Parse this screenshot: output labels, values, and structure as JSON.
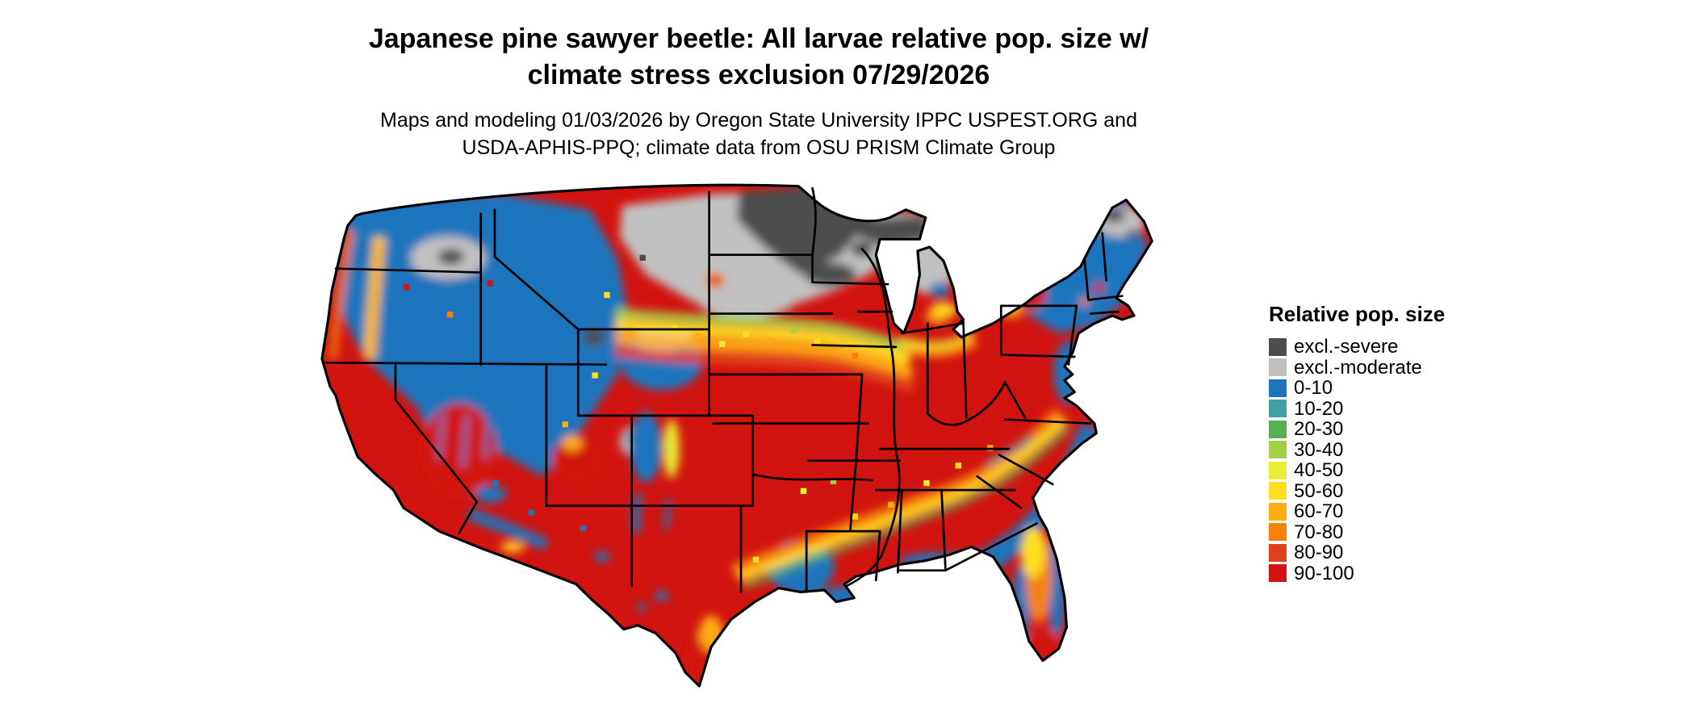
{
  "title": {
    "line1": "Japanese pine sawyer beetle: All larvae relative pop. size w/",
    "line2": "climate stress exclusion 07/29/2026"
  },
  "subtitle": {
    "line1": "Maps and modeling 01/03/2026 by Oregon State University IPPC USPEST.ORG and",
    "line2": "USDA-APHIS-PPQ; climate data from OSU PRISM Climate Group"
  },
  "legend": {
    "title": "Relative pop. size",
    "items": [
      {
        "key": "sev",
        "label": "excl.-severe",
        "color": "#4d4d4d"
      },
      {
        "key": "mod",
        "label": "excl.-moderate",
        "color": "#c0c0c0"
      },
      {
        "key": "p0",
        "label": "0-10",
        "color": "#1b75bc"
      },
      {
        "key": "p10",
        "label": "10-20",
        "color": "#41a0a4"
      },
      {
        "key": "p20",
        "label": "20-30",
        "color": "#55b054"
      },
      {
        "key": "p30",
        "label": "30-40",
        "color": "#a3d048"
      },
      {
        "key": "p40",
        "label": "40-50",
        "color": "#e8ee33"
      },
      {
        "key": "p50",
        "label": "50-60",
        "color": "#ffdf20"
      },
      {
        "key": "p60",
        "label": "60-70",
        "color": "#ffac12"
      },
      {
        "key": "p70",
        "label": "70-80",
        "color": "#f5820d"
      },
      {
        "key": "p80",
        "label": "80-90",
        "color": "#e2401c"
      },
      {
        "key": "p90",
        "label": "90-100",
        "color": "#d21410"
      }
    ]
  },
  "map": {
    "description": "Continental United States raster map of modeled relative population size for Japanese pine sawyer beetle larvae with climate stress exclusion; state boundaries drawn in black, water shown white.",
    "border_color": "#000000",
    "water_color": "#ffffff",
    "regions": [
      {
        "area": "Northern Plains and Upper Midwest (E MT, ND, MN, N WI, MI Upper Peninsula)",
        "dominant_class": "excl.-moderate / excl.-severe"
      },
      {
        "area": "Pacific Northwest and Northern Rockies (WA, OR, ID, W MT, W WY)",
        "dominant_class": "0-10 with scattered red/yellow valley patches"
      },
      {
        "area": "California, Nevada, Desert Southwest",
        "dominant_class": "90-100 with 0-10 montane streaks"
      },
      {
        "area": "Central and Southern Plains, Midwest, Mid-South, interior East",
        "dominant_class": "90-100"
      },
      {
        "area": "Plains transition band (SD, NE, IA edge)",
        "dominant_class": "30-80 gradient between excluded north and red core"
      },
      {
        "area": "Gulf and South Atlantic coastal plain (E TX, LA, MS, AL, GA, Carolinas coast)",
        "dominant_class": "0-10 with orange/yellow inland fringe"
      },
      {
        "area": "Florida peninsula",
        "dominant_class": "0-10 coasts, 60-80 interior, 90-100 far south"
      },
      {
        "area": "Northeast (NY, New England)",
        "dominant_class": "0-10 with excl. patches in N Maine and red patches in PA/NY"
      }
    ]
  }
}
